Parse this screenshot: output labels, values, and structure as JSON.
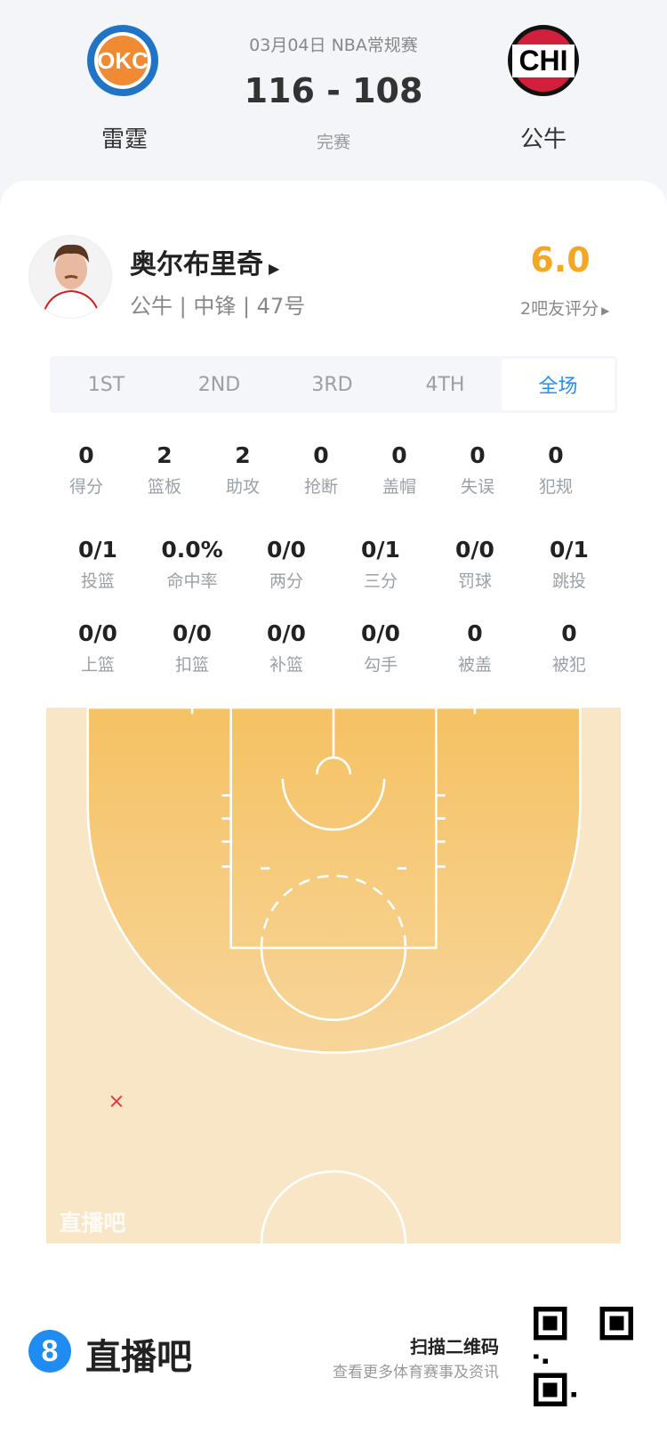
{
  "game": {
    "date_league": "03月04日 NBA常规赛",
    "score": "116 - 108",
    "status": "完赛",
    "home": {
      "abbr": "OKC",
      "name": "雷霆"
    },
    "away": {
      "abbr": "CHI",
      "name": "公牛"
    }
  },
  "player": {
    "name": "奥尔布里奇",
    "info": "公牛 | 中锋 | 47号",
    "rating": "6.0",
    "rating_label": "2吧友评分"
  },
  "tabs": [
    {
      "label": "1ST"
    },
    {
      "label": "2ND"
    },
    {
      "label": "3RD"
    },
    {
      "label": "4TH"
    },
    {
      "label": "全场",
      "active": true
    }
  ],
  "stats_row1": [
    {
      "v": "0",
      "l": "得分"
    },
    {
      "v": "2",
      "l": "篮板"
    },
    {
      "v": "2",
      "l": "助攻"
    },
    {
      "v": "0",
      "l": "抢断"
    },
    {
      "v": "0",
      "l": "盖帽"
    },
    {
      "v": "0",
      "l": "失误"
    },
    {
      "v": "0",
      "l": "犯规"
    }
  ],
  "stats_row2": [
    {
      "v": "0/1",
      "l": "投篮"
    },
    {
      "v": "0.0%",
      "l": "命中率"
    },
    {
      "v": "0/0",
      "l": "两分"
    },
    {
      "v": "0/1",
      "l": "三分"
    },
    {
      "v": "0/0",
      "l": "罚球"
    },
    {
      "v": "0/1",
      "l": "跳投"
    }
  ],
  "stats_row3": [
    {
      "v": "0/0",
      "l": "上篮"
    },
    {
      "v": "0/0",
      "l": "扣篮"
    },
    {
      "v": "0/0",
      "l": "补篮"
    },
    {
      "v": "0/0",
      "l": "勾手"
    },
    {
      "v": "0",
      "l": "被盖"
    },
    {
      "v": "0",
      "l": "被犯"
    }
  ],
  "shot_chart": {
    "watermark": "直播吧",
    "shots": [
      {
        "result": "miss",
        "marker": "×"
      }
    ]
  },
  "footer": {
    "brand": "直播吧",
    "scan": "扫描二维码",
    "sub": "查看更多体育赛事及资讯"
  },
  "colors": {
    "accent": "#2a8de8",
    "rating": "#f5a623",
    "miss": "#e03a3a"
  }
}
